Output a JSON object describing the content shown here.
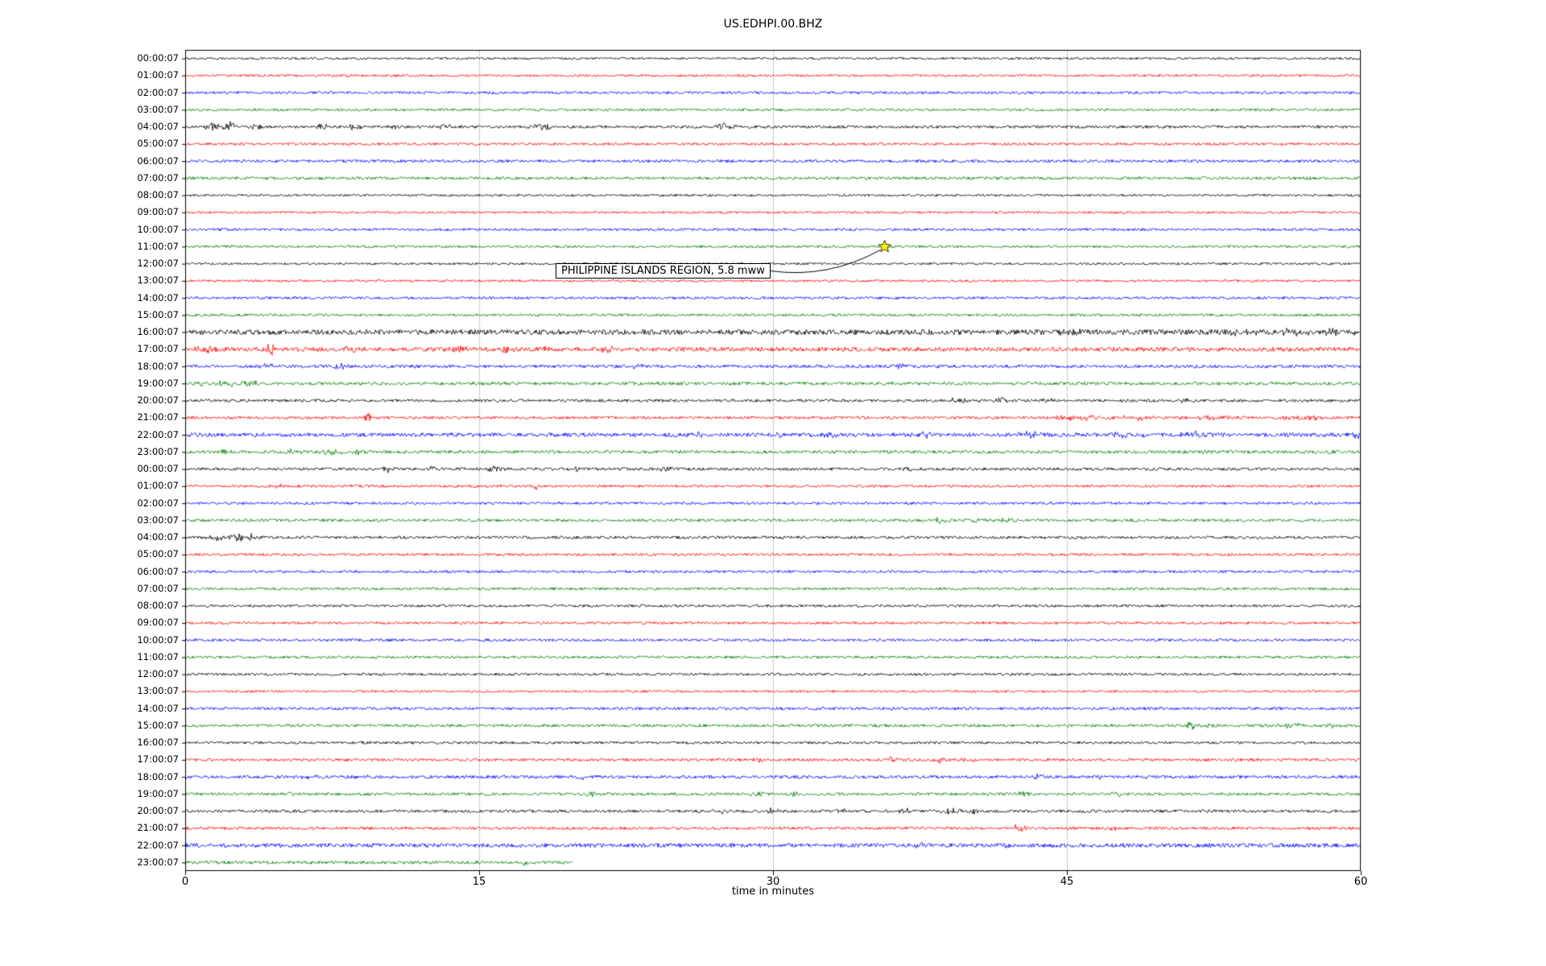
{
  "chart_data": {
    "type": "line",
    "variant": "seismogram-dayplot",
    "title": "US.EDHPI.00.BHZ",
    "xlabel": "time in minutes",
    "xlim": [
      0,
      60
    ],
    "x_ticks": [
      0,
      15,
      30,
      45,
      60
    ],
    "grid": true,
    "grid_color": "#cccccc",
    "color_map": {
      "black": "#000000",
      "red": "#ff0000",
      "blue": "#0000ff",
      "green": "#008000"
    },
    "annotation": {
      "text": "PHILIPPINE ISLANDS REGION, 5.8 mww",
      "row_index": 11,
      "x_min": 35.7,
      "marker": "star",
      "marker_color": "#ffff00",
      "marker_edge_color": "#000000"
    },
    "rows": [
      {
        "label": "00:00:07",
        "color": "black",
        "noise": 0.8,
        "events": []
      },
      {
        "label": "01:00:07",
        "color": "red",
        "noise": 0.8,
        "events": []
      },
      {
        "label": "02:00:07",
        "color": "blue",
        "noise": 0.9,
        "events": []
      },
      {
        "label": "03:00:07",
        "color": "green",
        "noise": 0.9,
        "events": []
      },
      {
        "label": "04:00:07",
        "color": "black",
        "noise": 1.0,
        "events": [
          [
            1.5,
            5,
            0.8
          ],
          [
            2.3,
            6,
            0.5
          ],
          [
            3.6,
            4,
            0.4
          ],
          [
            7.0,
            3,
            0.6
          ],
          [
            8.6,
            5.5,
            0.5
          ],
          [
            10.5,
            2.5,
            0.4
          ],
          [
            13.2,
            3,
            0.5
          ],
          [
            18.3,
            3.5,
            0.7
          ],
          [
            27.5,
            3.5,
            0.8
          ]
        ]
      },
      {
        "label": "05:00:07",
        "color": "red",
        "noise": 0.9,
        "events": []
      },
      {
        "label": "06:00:07",
        "color": "blue",
        "noise": 1.0,
        "events": []
      },
      {
        "label": "07:00:07",
        "color": "green",
        "noise": 1.0,
        "events": []
      },
      {
        "label": "08:00:07",
        "color": "black",
        "noise": 0.8,
        "events": []
      },
      {
        "label": "09:00:07",
        "color": "red",
        "noise": 0.8,
        "events": []
      },
      {
        "label": "10:00:07",
        "color": "blue",
        "noise": 0.9,
        "events": []
      },
      {
        "label": "11:00:07",
        "color": "green",
        "noise": 0.9,
        "events": []
      },
      {
        "label": "12:00:07",
        "color": "black",
        "noise": 0.8,
        "events": []
      },
      {
        "label": "13:00:07",
        "color": "red",
        "noise": 0.8,
        "events": []
      },
      {
        "label": "14:00:07",
        "color": "blue",
        "noise": 0.9,
        "events": []
      },
      {
        "label": "15:00:07",
        "color": "green",
        "noise": 0.9,
        "events": []
      },
      {
        "label": "16:00:07",
        "color": "black",
        "noise": 1.8,
        "events": [
          [
            45,
            1.5,
            1.5
          ],
          [
            54,
            2.5,
            1.2
          ],
          [
            56.5,
            3,
            1.0
          ],
          [
            58.5,
            3,
            0.8
          ],
          [
            59.7,
            2.5,
            0.4
          ]
        ]
      },
      {
        "label": "17:00:07",
        "color": "red",
        "noise": 1.5,
        "events": [
          [
            1.0,
            3,
            0.8
          ],
          [
            4.4,
            7,
            0.3
          ],
          [
            8.6,
            4,
            0.8
          ],
          [
            14.0,
            4,
            0.5
          ],
          [
            16.4,
            6,
            0.4
          ],
          [
            18.6,
            3,
            0.5
          ],
          [
            21.5,
            3,
            0.6
          ]
        ]
      },
      {
        "label": "18:00:07",
        "color": "blue",
        "noise": 1.1,
        "events": [
          [
            4.2,
            3,
            0.5
          ],
          [
            8.0,
            3,
            0.6
          ],
          [
            23.0,
            2.5,
            0.5
          ],
          [
            36.5,
            2.5,
            0.5
          ]
        ]
      },
      {
        "label": "19:00:07",
        "color": "green",
        "noise": 1.1,
        "events": [
          [
            0.8,
            2.5,
            0.4
          ],
          [
            2.0,
            4,
            0.8
          ],
          [
            3.3,
            3.5,
            0.6
          ]
        ]
      },
      {
        "label": "20:00:07",
        "color": "black",
        "noise": 1.0,
        "events": [
          [
            39.5,
            3,
            0.7
          ],
          [
            41.7,
            4,
            0.5
          ],
          [
            44.0,
            2,
            0.5
          ],
          [
            51.0,
            2.5,
            0.6
          ]
        ]
      },
      {
        "label": "21:00:07",
        "color": "red",
        "noise": 1.0,
        "events": [
          [
            9.3,
            6,
            0.25
          ],
          [
            45.5,
            2.5,
            2.0
          ],
          [
            48.5,
            2.5,
            1.5
          ],
          [
            52.5,
            2.5,
            1.5
          ],
          [
            57.0,
            2.5,
            1.5
          ]
        ]
      },
      {
        "label": "22:00:07",
        "color": "blue",
        "noise": 1.4,
        "events": [
          [
            26.0,
            3,
            0.5
          ],
          [
            30.3,
            3,
            0.4
          ],
          [
            33.0,
            2.5,
            0.5
          ],
          [
            37.8,
            3,
            0.6
          ],
          [
            43.0,
            3,
            1.0
          ],
          [
            48.0,
            3,
            1.2
          ],
          [
            51.5,
            3.5,
            0.8
          ],
          [
            59.8,
            4,
            0.3
          ]
        ]
      },
      {
        "label": "23:00:07",
        "color": "green",
        "noise": 1.1,
        "events": [
          [
            2.0,
            2,
            0.5
          ],
          [
            5.6,
            3,
            0.6
          ],
          [
            7.6,
            3.5,
            0.9
          ],
          [
            8.8,
            3,
            0.6
          ]
        ]
      },
      {
        "label": "00:00:07",
        "color": "black",
        "noise": 1.0,
        "events": [
          [
            10.3,
            3.5,
            0.5
          ],
          [
            12.7,
            3.5,
            0.6
          ],
          [
            15.8,
            3,
            0.6
          ],
          [
            20.0,
            2,
            0.4
          ],
          [
            24.5,
            2.5,
            0.6
          ],
          [
            37.0,
            2.5,
            0.5
          ]
        ]
      },
      {
        "label": "01:00:07",
        "color": "red",
        "noise": 0.9,
        "events": [
          [
            4.8,
            3.5,
            0.25
          ],
          [
            17.9,
            3.5,
            0.25
          ]
        ]
      },
      {
        "label": "02:00:07",
        "color": "blue",
        "noise": 0.9,
        "events": []
      },
      {
        "label": "03:00:07",
        "color": "green",
        "noise": 1.0,
        "events": [
          [
            38.5,
            2.5,
            0.8
          ],
          [
            40.5,
            3,
            0.8
          ],
          [
            42.0,
            2.5,
            0.6
          ]
        ]
      },
      {
        "label": "04:00:07",
        "color": "black",
        "noise": 1.0,
        "events": [
          [
            1.6,
            4,
            0.5
          ],
          [
            2.6,
            5,
            0.6
          ],
          [
            3.4,
            4.5,
            0.5
          ]
        ]
      },
      {
        "label": "05:00:07",
        "color": "red",
        "noise": 0.9,
        "events": []
      },
      {
        "label": "06:00:07",
        "color": "blue",
        "noise": 0.9,
        "events": []
      },
      {
        "label": "07:00:07",
        "color": "green",
        "noise": 0.9,
        "events": []
      },
      {
        "label": "08:00:07",
        "color": "black",
        "noise": 0.9,
        "events": []
      },
      {
        "label": "09:00:07",
        "color": "red",
        "noise": 0.9,
        "events": []
      },
      {
        "label": "10:00:07",
        "color": "blue",
        "noise": 0.9,
        "events": []
      },
      {
        "label": "11:00:07",
        "color": "green",
        "noise": 0.9,
        "events": []
      },
      {
        "label": "12:00:07",
        "color": "black",
        "noise": 0.9,
        "events": []
      },
      {
        "label": "13:00:07",
        "color": "red",
        "noise": 0.8,
        "events": []
      },
      {
        "label": "14:00:07",
        "color": "blue",
        "noise": 1.0,
        "events": [
          [
            28.0,
            2,
            0.5
          ]
        ]
      },
      {
        "label": "15:00:07",
        "color": "green",
        "noise": 1.0,
        "events": [
          [
            51.2,
            7,
            0.4
          ],
          [
            52.2,
            3,
            0.8
          ],
          [
            56.5,
            3,
            0.8
          ],
          [
            58.5,
            2.5,
            0.6
          ]
        ]
      },
      {
        "label": "16:00:07",
        "color": "black",
        "noise": 0.9,
        "events": [
          [
            9.2,
            2.5,
            0.3
          ]
        ]
      },
      {
        "label": "17:00:07",
        "color": "red",
        "noise": 1.0,
        "events": [
          [
            20.2,
            3,
            0.4
          ],
          [
            29.2,
            2.5,
            0.5
          ],
          [
            36.0,
            3,
            0.6
          ],
          [
            38.5,
            3,
            0.7
          ],
          [
            40.0,
            2.5,
            0.5
          ]
        ]
      },
      {
        "label": "18:00:07",
        "color": "blue",
        "noise": 1.1,
        "events": [
          [
            6.3,
            2.5,
            0.5
          ],
          [
            9.0,
            2.5,
            0.4
          ],
          [
            20.3,
            2,
            0.4
          ],
          [
            43.5,
            3,
            0.6
          ],
          [
            46.5,
            2.5,
            0.5
          ]
        ]
      },
      {
        "label": "19:00:07",
        "color": "green",
        "noise": 1.0,
        "events": [
          [
            5.5,
            2.5,
            0.5
          ],
          [
            7.5,
            2,
            0.4
          ],
          [
            10.8,
            2,
            0.4
          ],
          [
            20.7,
            3.5,
            0.5
          ],
          [
            29.2,
            3,
            0.5
          ],
          [
            31.0,
            2,
            0.4
          ],
          [
            42.8,
            3,
            0.7
          ],
          [
            47.5,
            2.5,
            0.6
          ]
        ]
      },
      {
        "label": "20:00:07",
        "color": "black",
        "noise": 1.0,
        "events": [
          [
            27.3,
            3,
            0.5
          ],
          [
            30.0,
            3,
            0.5
          ],
          [
            33.5,
            2.5,
            0.5
          ],
          [
            36.8,
            3.5,
            0.6
          ],
          [
            39.3,
            4,
            0.8
          ],
          [
            40.3,
            3.5,
            0.5
          ]
        ]
      },
      {
        "label": "21:00:07",
        "color": "red",
        "noise": 1.0,
        "events": [
          [
            42.5,
            3.5,
            0.6
          ],
          [
            47.3,
            2.5,
            0.5
          ]
        ]
      },
      {
        "label": "22:00:07",
        "color": "blue",
        "noise": 1.4,
        "events": [
          [
            37.5,
            2.5,
            0.6
          ],
          [
            42.0,
            2.5,
            0.5
          ]
        ]
      },
      {
        "label": "23:00:07",
        "color": "green",
        "noise": 1.1,
        "end_min": 19.8,
        "events": [
          [
            17.4,
            3,
            0.4
          ]
        ]
      }
    ]
  }
}
